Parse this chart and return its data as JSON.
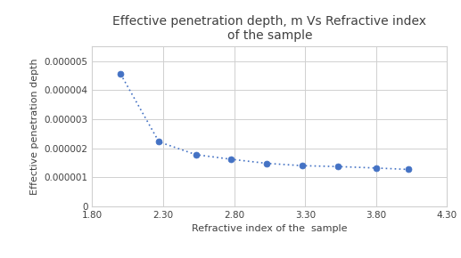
{
  "x": [
    2.0,
    2.27,
    2.53,
    2.78,
    3.03,
    3.28,
    3.53,
    3.8,
    4.03
  ],
  "y": [
    4.55e-06,
    2.22e-06,
    1.78e-06,
    1.62e-06,
    1.48e-06,
    1.4e-06,
    1.37e-06,
    1.32e-06,
    1.27e-06
  ],
  "title": "Effective penetration depth, m Vs Refractive index\nof the sample",
  "xlabel": "Refractive index of the  sample",
  "ylabel": "Effective penetration depth",
  "xlim": [
    1.8,
    4.3
  ],
  "ylim": [
    0,
    5.5e-06
  ],
  "xticks": [
    1.8,
    2.3,
    2.8,
    3.3,
    3.8,
    4.3
  ],
  "yticks": [
    0,
    1e-06,
    2e-06,
    3e-06,
    4e-06,
    5e-06
  ],
  "ytick_labels": [
    "0",
    "0.000001",
    "0.000002",
    "0.000003",
    "0.000004",
    "0.000005"
  ],
  "line_color": "#4472C4",
  "marker_color": "#4472C4",
  "bg_color": "#ffffff",
  "plot_bg": "#ffffff",
  "title_color": "#404040",
  "axis_label_color": "#404040",
  "tick_color": "#404040",
  "grid_color": "#d0d0d0",
  "title_fontsize": 10,
  "label_fontsize": 8,
  "tick_fontsize": 7.5
}
